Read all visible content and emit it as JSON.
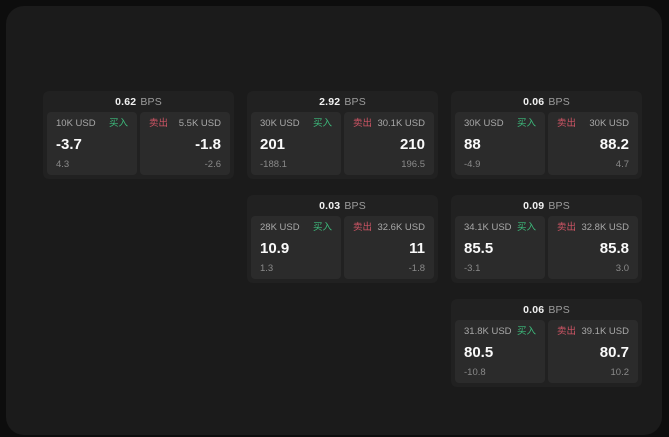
{
  "labels": {
    "buy": "买入",
    "sell": "卖出",
    "bps_unit": "BPS"
  },
  "colors": {
    "buy": "#3dbd7d",
    "sell": "#cf5565",
    "card_bg": "#212121",
    "pane_bg": "#2b2b2b",
    "surface_bg": "#1b1b1b",
    "outer_bg": "#0d0d0d"
  },
  "cards": [
    {
      "bps": "0.62",
      "grid": {
        "row": 1,
        "col": 1
      },
      "buy": {
        "amount": "10K USD",
        "value": "-3.7",
        "sub": "4.3"
      },
      "sell": {
        "amount": "5.5K USD",
        "value": "-1.8",
        "sub": "-2.6"
      }
    },
    {
      "bps": "2.92",
      "grid": {
        "row": 1,
        "col": 2
      },
      "buy": {
        "amount": "30K USD",
        "value": "201",
        "sub": "-188.1"
      },
      "sell": {
        "amount": "30.1K USD",
        "value": "210",
        "sub": "196.5"
      }
    },
    {
      "bps": "0.06",
      "grid": {
        "row": 1,
        "col": 3
      },
      "buy": {
        "amount": "30K USD",
        "value": "88",
        "sub": "-4.9"
      },
      "sell": {
        "amount": "30K USD",
        "value": "88.2",
        "sub": "4.7"
      }
    },
    {
      "bps": "0.03",
      "grid": {
        "row": 2,
        "col": 2
      },
      "buy": {
        "amount": "28K USD",
        "value": "10.9",
        "sub": "1.3"
      },
      "sell": {
        "amount": "32.6K USD",
        "value": "11",
        "sub": "-1.8"
      }
    },
    {
      "bps": "0.09",
      "grid": {
        "row": 2,
        "col": 3
      },
      "buy": {
        "amount": "34.1K USD",
        "value": "85.5",
        "sub": "-3.1"
      },
      "sell": {
        "amount": "32.8K USD",
        "value": "85.8",
        "sub": "3.0"
      }
    },
    {
      "bps": "0.06",
      "grid": {
        "row": 3,
        "col": 3
      },
      "buy": {
        "amount": "31.8K USD",
        "value": "80.5",
        "sub": "-10.8"
      },
      "sell": {
        "amount": "39.1K USD",
        "value": "80.7",
        "sub": "10.2"
      }
    }
  ]
}
